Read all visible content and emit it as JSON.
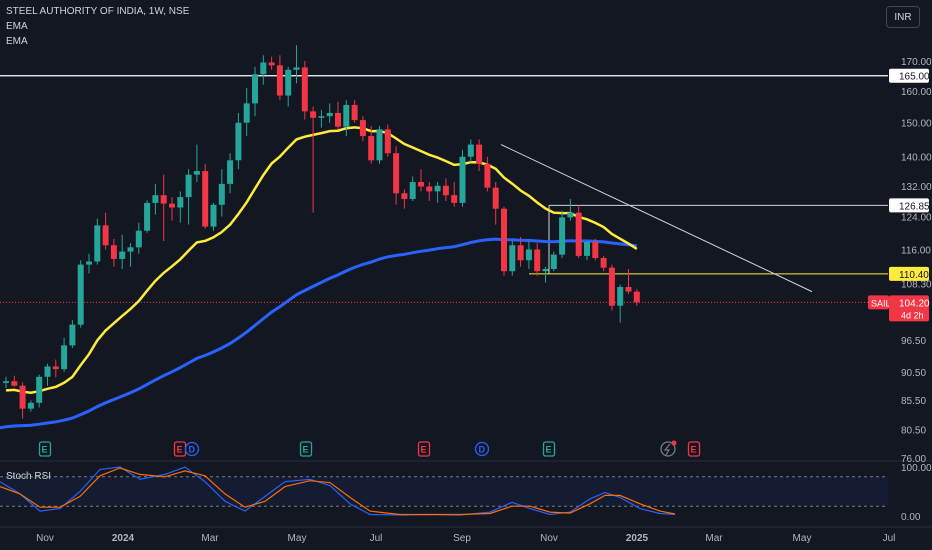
{
  "header": {
    "title": "STEEL AUTHORITY OF INDIA, 1W, NSE",
    "indicators": [
      "EMA",
      "EMA"
    ],
    "currency": "INR"
  },
  "colors": {
    "background": "#131722",
    "up": "#26a69a",
    "down": "#f23645",
    "ema_short": "#ffeb3b",
    "ema_long": "#2962ff",
    "stoch_k": "#2962ff",
    "stoch_d": "#ff6d00"
  },
  "price_axis": {
    "ticks": [
      "170.00",
      "160.00",
      "150.00",
      "140.00",
      "132.00",
      "124.00",
      "116.00",
      "108.30",
      "96.50",
      "90.50",
      "85.50",
      "80.50",
      "76.00"
    ]
  },
  "labels": {
    "level_165": "165.00",
    "level_126": "126.85",
    "level_110": "110.40",
    "symbol": "SAIL",
    "last_price": "104.20",
    "countdown": "4d 2h"
  },
  "event_markers": [
    "E",
    "E",
    "D",
    "E",
    "E",
    "D",
    "E",
    "E"
  ],
  "stoch": {
    "title": "Stoch RSI",
    "ticks": [
      "100.00",
      "0.00"
    ]
  },
  "time_axis": [
    "Nov",
    "2024",
    "Mar",
    "May",
    "Jul",
    "Sep",
    "Nov",
    "2025",
    "Mar",
    "May",
    "Jul"
  ],
  "chart_data": {
    "type": "candlestick",
    "title": "STEEL AUTHORITY OF INDIA, 1W, NSE",
    "x_range": [
      "Oct 2023",
      "Jul 2025"
    ],
    "y_range": [
      76,
      176
    ],
    "scale": "log",
    "horizontal_levels": [
      165.0,
      126.85,
      110.4
    ],
    "trendline": {
      "start": [
        {
          "date": "Sep 2024"
        },
        143.5
      ],
      "end": [
        {
          "date": "May 2025"
        },
        106.5
      ]
    },
    "last": 104.2,
    "candles": [
      [
        88.5,
        89.6,
        87.6,
        88.8
      ],
      [
        88.8,
        89.8,
        87.8,
        88.0
      ],
      [
        88.0,
        88.6,
        82.3,
        84.0
      ],
      [
        84.0,
        85.4,
        83.5,
        85.0
      ],
      [
        85.0,
        90.0,
        84.2,
        89.6
      ],
      [
        89.6,
        92.0,
        88.0,
        91.5
      ],
      [
        91.5,
        92.8,
        89.5,
        91.0
      ],
      [
        91.0,
        97.0,
        90.5,
        95.5
      ],
      [
        95.5,
        100.5,
        95.0,
        99.6
      ],
      [
        99.6,
        113.5,
        99.0,
        112.5
      ],
      [
        112.5,
        115.0,
        110.5,
        113.2
      ],
      [
        113.2,
        123.5,
        112.5,
        121.8
      ],
      [
        121.8,
        125.0,
        116.0,
        117.0
      ],
      [
        117.0,
        118.5,
        112.0,
        113.8
      ],
      [
        113.8,
        119.5,
        111.5,
        115.5
      ],
      [
        115.5,
        117.5,
        112.0,
        116.5
      ],
      [
        116.5,
        122.5,
        115.0,
        120.5
      ],
      [
        120.5,
        128.2,
        120.0,
        127.5
      ],
      [
        127.5,
        132.5,
        124.5,
        129.5
      ],
      [
        129.5,
        135.0,
        118.0,
        127.3
      ],
      [
        127.3,
        129.0,
        123.0,
        126.3
      ],
      [
        126.3,
        130.5,
        122.5,
        129.0
      ],
      [
        129.0,
        136.5,
        122.0,
        135.0
      ],
      [
        135.0,
        143.5,
        133.0,
        136.0
      ],
      [
        136.0,
        138.0,
        121.0,
        121.5
      ],
      [
        121.5,
        127.5,
        120.5,
        127.0
      ],
      [
        127.0,
        136.5,
        124.0,
        132.5
      ],
      [
        132.5,
        141.0,
        130.0,
        139.0
      ],
      [
        139.0,
        153.0,
        136.5,
        150.0
      ],
      [
        150.0,
        161.0,
        146.0,
        156.0
      ],
      [
        156.0,
        168.0,
        152.0,
        165.5
      ],
      [
        165.5,
        172.0,
        162.0,
        169.5
      ],
      [
        169.5,
        171.5,
        167.0,
        168.5
      ],
      [
        168.5,
        172.0,
        157.0,
        158.5
      ],
      [
        158.5,
        168.0,
        155.0,
        167.0
      ],
      [
        167.0,
        175.5,
        162.5,
        167.8
      ],
      [
        167.8,
        170.0,
        151.0,
        153.5
      ],
      [
        153.5,
        155.0,
        125.0,
        151.5
      ],
      [
        151.5,
        154.0,
        148.5,
        152.0
      ],
      [
        152.0,
        156.0,
        150.0,
        153.0
      ],
      [
        153.0,
        156.5,
        148.0,
        148.8
      ],
      [
        148.8,
        157.0,
        146.0,
        155.5
      ],
      [
        155.5,
        157.0,
        150.0,
        150.8
      ],
      [
        150.8,
        152.0,
        144.5,
        146.0
      ],
      [
        146.0,
        149.0,
        138.0,
        139.0
      ],
      [
        139.0,
        149.0,
        138.0,
        148.0
      ],
      [
        148.0,
        149.5,
        140.0,
        141.0
      ],
      [
        141.0,
        143.0,
        127.0,
        130.0
      ],
      [
        130.0,
        131.0,
        126.0,
        128.5
      ],
      [
        128.5,
        134.5,
        128.0,
        133.0
      ],
      [
        133.0,
        136.5,
        130.5,
        131.8
      ],
      [
        131.8,
        133.0,
        128.0,
        130.5
      ],
      [
        130.5,
        133.0,
        127.5,
        132.0
      ],
      [
        132.0,
        134.0,
        128.0,
        129.5
      ],
      [
        129.5,
        133.0,
        126.5,
        127.5
      ],
      [
        127.5,
        142.0,
        126.5,
        140.0
      ],
      [
        140.0,
        145.0,
        138.5,
        143.5
      ],
      [
        143.5,
        145.0,
        136.0,
        138.0
      ],
      [
        138.0,
        140.0,
        130.5,
        131.5
      ],
      [
        131.5,
        133.0,
        122.0,
        126.0
      ],
      [
        126.0,
        126.5,
        110.0,
        111.0
      ],
      [
        111.0,
        118.0,
        110.0,
        117.0
      ],
      [
        117.0,
        119.0,
        112.0,
        113.5
      ],
      [
        113.5,
        118.0,
        111.5,
        116.0
      ],
      [
        116.0,
        117.5,
        110.0,
        111.0
      ],
      [
        111.0,
        112.0,
        108.5,
        111.5
      ],
      [
        111.5,
        115.5,
        111.0,
        114.8
      ],
      [
        114.8,
        125.5,
        114.0,
        123.8
      ],
      [
        123.8,
        128.5,
        123.0,
        125.0
      ],
      [
        125.0,
        127.0,
        114.0,
        114.5
      ],
      [
        114.5,
        118.0,
        113.5,
        117.8
      ],
      [
        117.8,
        118.5,
        113.5,
        114.0
      ],
      [
        114.0,
        114.5,
        111.0,
        111.8
      ],
      [
        111.8,
        112.5,
        102.5,
        103.5
      ],
      [
        103.5,
        108.0,
        100.0,
        107.5
      ],
      [
        107.5,
        111.5,
        106.0,
        106.5
      ],
      [
        106.5,
        107.0,
        103.5,
        104.2
      ]
    ],
    "ema_short_note": "yellow EMA",
    "ema_long_note": "blue EMA",
    "stoch_rsi": {
      "y_range": [
        0,
        100
      ],
      "note": "K and D lines"
    }
  }
}
